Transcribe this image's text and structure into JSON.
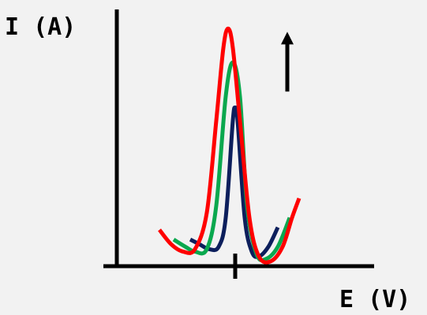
{
  "chart_data": {
    "type": "line",
    "title": "",
    "xlabel": "E (V)",
    "ylabel": "I (A)",
    "grid": false,
    "legend": "none",
    "xlim": [
      0,
      10
    ],
    "ylim": [
      0,
      10
    ],
    "x_tick_values": [
      5
    ],
    "series": [
      {
        "color": "#0d1f5c",
        "x": [
          3.1,
          3.5,
          3.9,
          4.3,
          4.6,
          4.9,
          5.0,
          5.1,
          5.4,
          5.7,
          6.0,
          6.4,
          6.8
        ],
        "y": [
          1.1,
          0.9,
          0.7,
          0.8,
          2.0,
          6.0,
          6.5,
          6.0,
          2.0,
          0.6,
          0.4,
          0.8,
          1.6
        ]
      },
      {
        "color": "#0aa84e",
        "x": [
          2.4,
          2.9,
          3.3,
          3.8,
          4.2,
          4.6,
          4.9,
          5.2,
          5.5,
          5.9,
          6.3,
          6.8,
          7.3
        ],
        "y": [
          1.1,
          0.8,
          0.6,
          0.7,
          2.5,
          7.0,
          8.4,
          7.0,
          2.5,
          0.5,
          0.3,
          0.8,
          2.0
        ]
      },
      {
        "color": "#ff0000",
        "x": [
          1.8,
          2.3,
          2.8,
          3.3,
          3.8,
          4.2,
          4.5,
          4.7,
          4.9,
          5.2,
          5.6,
          6.0,
          6.5,
          7.0,
          7.4,
          7.7
        ],
        "y": [
          1.5,
          0.9,
          0.6,
          0.7,
          2.2,
          6.0,
          9.0,
          9.8,
          9.0,
          6.0,
          2.0,
          0.4,
          0.2,
          0.8,
          2.0,
          2.8
        ]
      }
    ],
    "annotations": [
      {
        "type": "arrow",
        "direction": "up",
        "x": 7.2,
        "y_from": 7.2,
        "y_to": 9.6
      }
    ]
  }
}
